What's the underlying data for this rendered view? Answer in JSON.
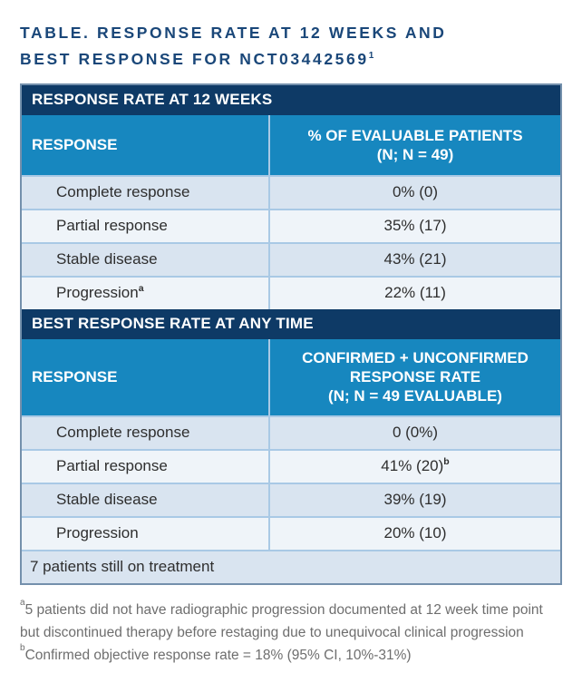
{
  "title": {
    "text": "TABLE. RESPONSE RATE AT 12 WEEKS AND BEST RESPONSE FOR NCT03442569",
    "sup": "1"
  },
  "colors": {
    "navy": "#0E3A66",
    "blue": "#1787BF",
    "row_dark": "#D9E4F0",
    "row_light": "#EFF4F9",
    "divider": "#A9C9E5",
    "border": "#7490AC",
    "title_text": "#1A4779",
    "footnote_text": "#6E6E6E",
    "header_text": "#FFFFFF",
    "body_text": "#2E2E2E"
  },
  "sections": [
    {
      "header": "RESPONSE RATE AT 12 WEEKS",
      "col1": "RESPONSE",
      "col2_lines": [
        "% OF EVALUABLE PATIENTS",
        "(N; N = 49)"
      ],
      "rows": [
        {
          "label": "Complete response",
          "value": "0% (0)"
        },
        {
          "label": "Partial response",
          "value": "35% (17)"
        },
        {
          "label": "Stable disease",
          "value": "43% (21)"
        },
        {
          "label": "Progression",
          "label_sup": "a",
          "value": "22% (11)"
        }
      ]
    },
    {
      "header": "BEST RESPONSE RATE AT ANY TIME",
      "col1": "RESPONSE",
      "col2_lines": [
        "CONFIRMED + UNCONFIRMED",
        "RESPONSE RATE",
        "(N; N = 49 EVALUABLE)"
      ],
      "rows": [
        {
          "label": "Complete response",
          "value": "0 (0%)"
        },
        {
          "label": "Partial response",
          "value": "41% (20)",
          "value_sup": "b"
        },
        {
          "label": "Stable disease",
          "value": "39% (19)"
        },
        {
          "label": "Progression",
          "value": "20% (10)"
        }
      ]
    }
  ],
  "footer_row": "7 patients still on treatment",
  "footnotes": [
    {
      "sup": "a",
      "text": "5 patients did not have radiographic progression documented at 12 week time point but discontinued therapy before restaging due to unequivocal clinical progression"
    },
    {
      "sup": "b",
      "text": "Confirmed objective response rate = 18% (95% CI, 10%-31%)"
    }
  ]
}
